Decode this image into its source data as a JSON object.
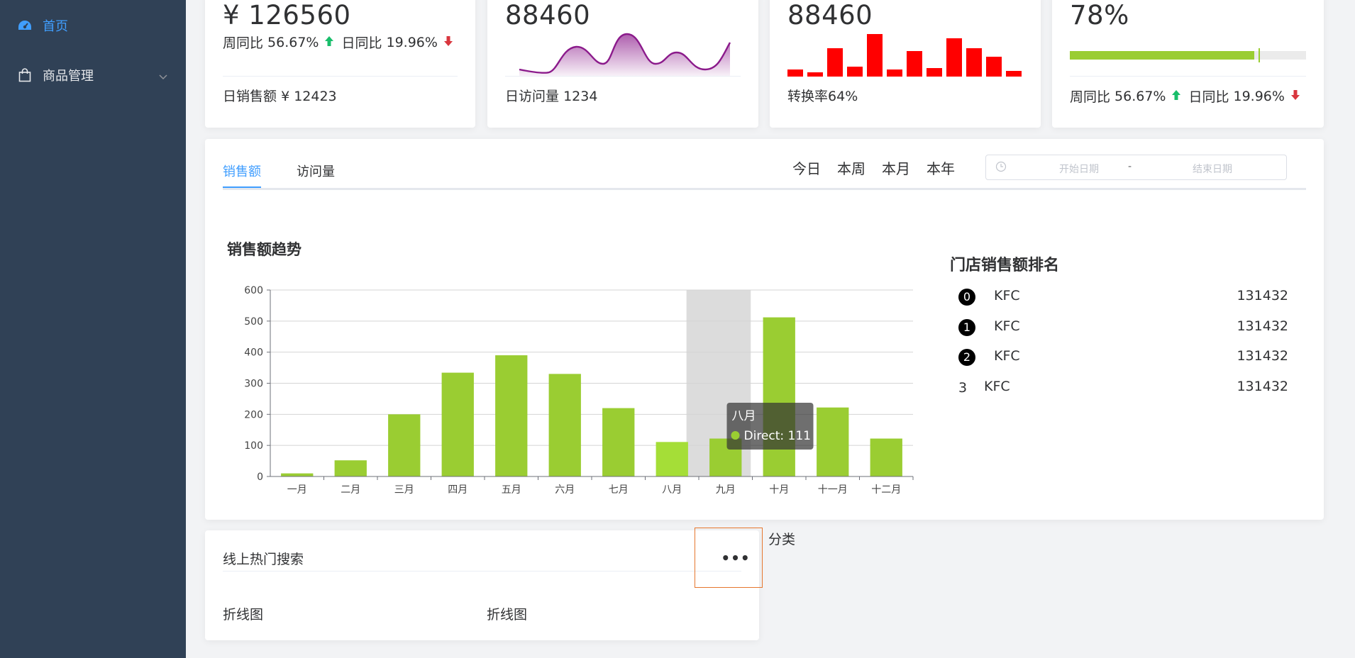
{
  "sidebar": {
    "items": [
      {
        "label": "首页",
        "icon": "dashboard-icon",
        "active": true
      },
      {
        "label": "商品管理",
        "icon": "shopping-bag-icon",
        "expandable": true
      }
    ],
    "bg_color": "#304156",
    "active_color": "#409eff"
  },
  "stats": [
    {
      "value": "¥ 126560",
      "week_label": "周同比",
      "week_pct": "56.67%",
      "day_label": "日同比",
      "day_pct": "19.96%",
      "footer_label": "日销售额",
      "footer_value": "¥ 12423"
    },
    {
      "value": "88460",
      "footer_label": "日访问量",
      "footer_value": "1234"
    },
    {
      "value": "88460",
      "footer_label": "转换率",
      "footer_value": "64%"
    },
    {
      "value": "78%",
      "week_label": "周同比",
      "week_pct": "56.67%",
      "day_label": "日同比",
      "day_pct": "19.96%",
      "progress": 0.78
    }
  ],
  "tabs": [
    {
      "label": "销售额",
      "active": true
    },
    {
      "label": "访问量",
      "active": false
    }
  ],
  "range_links": [
    "今日",
    "本周",
    "本月",
    "本年"
  ],
  "date_range": {
    "start_placeholder": "开始日期",
    "separator": "-",
    "end_placeholder": "结束日期"
  },
  "chart_title": "销售额趋势",
  "chart_data": {
    "type": "bar",
    "categories": [
      "一月",
      "二月",
      "三月",
      "四月",
      "五月",
      "六月",
      "七月",
      "八月",
      "九月",
      "十月",
      "十一月",
      "十二月"
    ],
    "values": [
      10,
      52,
      200,
      334,
      390,
      330,
      220,
      111,
      122,
      512,
      222,
      122
    ],
    "ylim": [
      0,
      600
    ],
    "yticks": [
      0,
      100,
      200,
      300,
      400,
      500,
      600
    ],
    "bar_color": "#9acd32",
    "hover_color": "#a5de37",
    "grid": true,
    "tooltip": {
      "category": "八月",
      "series": "Direct",
      "value": 111
    }
  },
  "rank": {
    "title": "门店销售额排名",
    "rows": [
      {
        "index": "0",
        "name": "KFC",
        "value": "131432"
      },
      {
        "index": "1",
        "name": "KFC",
        "value": "131432"
      },
      {
        "index": "2",
        "name": "KFC",
        "value": "131432"
      },
      {
        "index": "3",
        "name": "KFC",
        "value": "131432"
      }
    ]
  },
  "bottom": {
    "title": "线上热门搜索",
    "col_left": "折线图",
    "col_right": "折线图",
    "more": "•••",
    "side_label": "分类"
  }
}
